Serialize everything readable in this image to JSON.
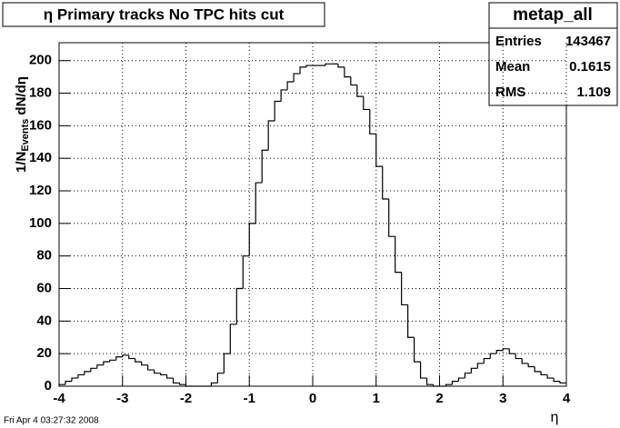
{
  "chart_data": {
    "type": "histogram",
    "title": "η Primary tracks No TPC hits cut",
    "x_label": "η",
    "y_label": {
      "main": "1/N",
      "sub": "Events",
      "tail": "dN/dη"
    },
    "footer": "Fri Apr  4 03:27:32 2008",
    "stats": {
      "title": "metap_all",
      "rows": [
        {
          "label": "Entries",
          "value": 143467
        },
        {
          "label": "Mean",
          "value": 0.1615
        },
        {
          "label": "RMS",
          "value": 1.109
        }
      ]
    },
    "bins": [
      -4,
      -3.9,
      -3.8,
      -3.7,
      -3.6,
      -3.5,
      -3.4,
      -3.3,
      -3.2,
      -3.1,
      -3,
      -2.9,
      -2.8,
      -2.7,
      -2.6,
      -2.5,
      -2.4,
      -2.3,
      -2.2,
      -2.1,
      -2,
      -1.9,
      -1.8,
      -1.7,
      -1.6,
      -1.5,
      -1.4,
      -1.3,
      -1.2,
      -1.1,
      -1,
      -0.9,
      -0.8,
      -0.7,
      -0.6,
      -0.5,
      -0.4,
      -0.3,
      -0.2,
      -0.1,
      0,
      0.1,
      0.2,
      0.3,
      0.4,
      0.5,
      0.6,
      0.7,
      0.8,
      0.9,
      1,
      1.1,
      1.2,
      1.3,
      1.4,
      1.5,
      1.6,
      1.7,
      1.8,
      1.9,
      2,
      2.1,
      2.2,
      2.3,
      2.4,
      2.5,
      2.6,
      2.7,
      2.8,
      2.9,
      3,
      3.1,
      3.2,
      3.3,
      3.4,
      3.5,
      3.6,
      3.7,
      3.8,
      3.9,
      4
    ],
    "values": [
      1,
      3,
      5,
      7,
      9,
      11,
      13,
      15,
      16,
      18,
      19,
      17,
      15,
      13,
      10,
      8,
      7,
      5,
      2,
      1,
      0,
      0,
      0,
      0,
      2,
      8,
      20,
      38,
      60,
      80,
      100,
      125,
      145,
      163,
      175,
      182,
      187,
      192,
      196,
      197,
      197,
      197,
      198,
      198,
      196,
      190,
      185,
      178,
      170,
      155,
      135,
      115,
      92,
      70,
      50,
      30,
      15,
      5,
      1,
      0,
      0,
      1,
      3,
      5,
      8,
      11,
      14,
      17,
      20,
      22,
      23,
      20,
      17,
      14,
      12,
      9,
      7,
      5,
      3,
      2
    ],
    "color": "#000000",
    "xlim": [
      -4,
      4
    ],
    "xticks": [
      -4,
      -3,
      -2,
      -1,
      0,
      1,
      2,
      3,
      4
    ],
    "ylim": [
      0,
      211
    ],
    "yticks": [
      0,
      20,
      40,
      60,
      80,
      100,
      120,
      140,
      160,
      180,
      200
    ],
    "grid": true
  }
}
